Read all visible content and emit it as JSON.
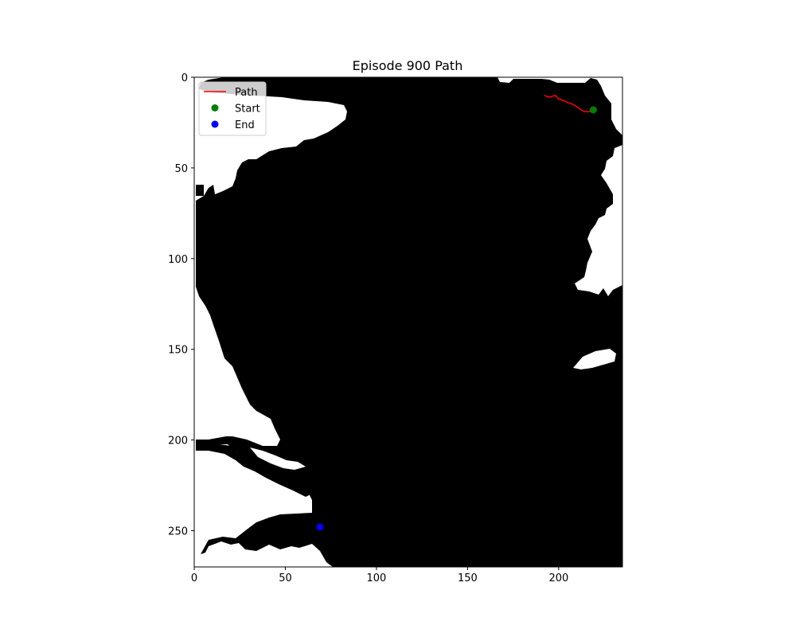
{
  "chart_data": {
    "type": "image",
    "title": "Episode 900 Path",
    "xlim": [
      0,
      235
    ],
    "ylim": [
      270,
      0
    ],
    "y_inverted": true,
    "grid": false,
    "colormap": "gray (black = water, white = land)",
    "xticks": [
      0,
      50,
      100,
      150,
      200
    ],
    "yticks": [
      0,
      50,
      100,
      150,
      200,
      250
    ],
    "legend_position": "upper left",
    "legend": [
      "Path",
      "Start",
      "End"
    ],
    "series": [
      {
        "name": "Path",
        "type": "line",
        "color": "#ff0000",
        "points": [
          [
            192,
            10
          ],
          [
            195,
            11
          ],
          [
            198,
            10
          ],
          [
            200,
            12
          ],
          [
            203,
            13
          ],
          [
            205,
            14
          ],
          [
            208,
            15
          ],
          [
            211,
            17
          ],
          [
            214,
            19
          ],
          [
            217,
            19
          ],
          [
            219,
            18
          ]
        ]
      },
      {
        "name": "Start",
        "type": "scatter",
        "color": "#008000",
        "points": [
          [
            219,
            18
          ]
        ]
      },
      {
        "name": "End",
        "type": "scatter",
        "color": "#0000ff",
        "points": [
          [
            69,
            248
          ]
        ]
      }
    ]
  }
}
